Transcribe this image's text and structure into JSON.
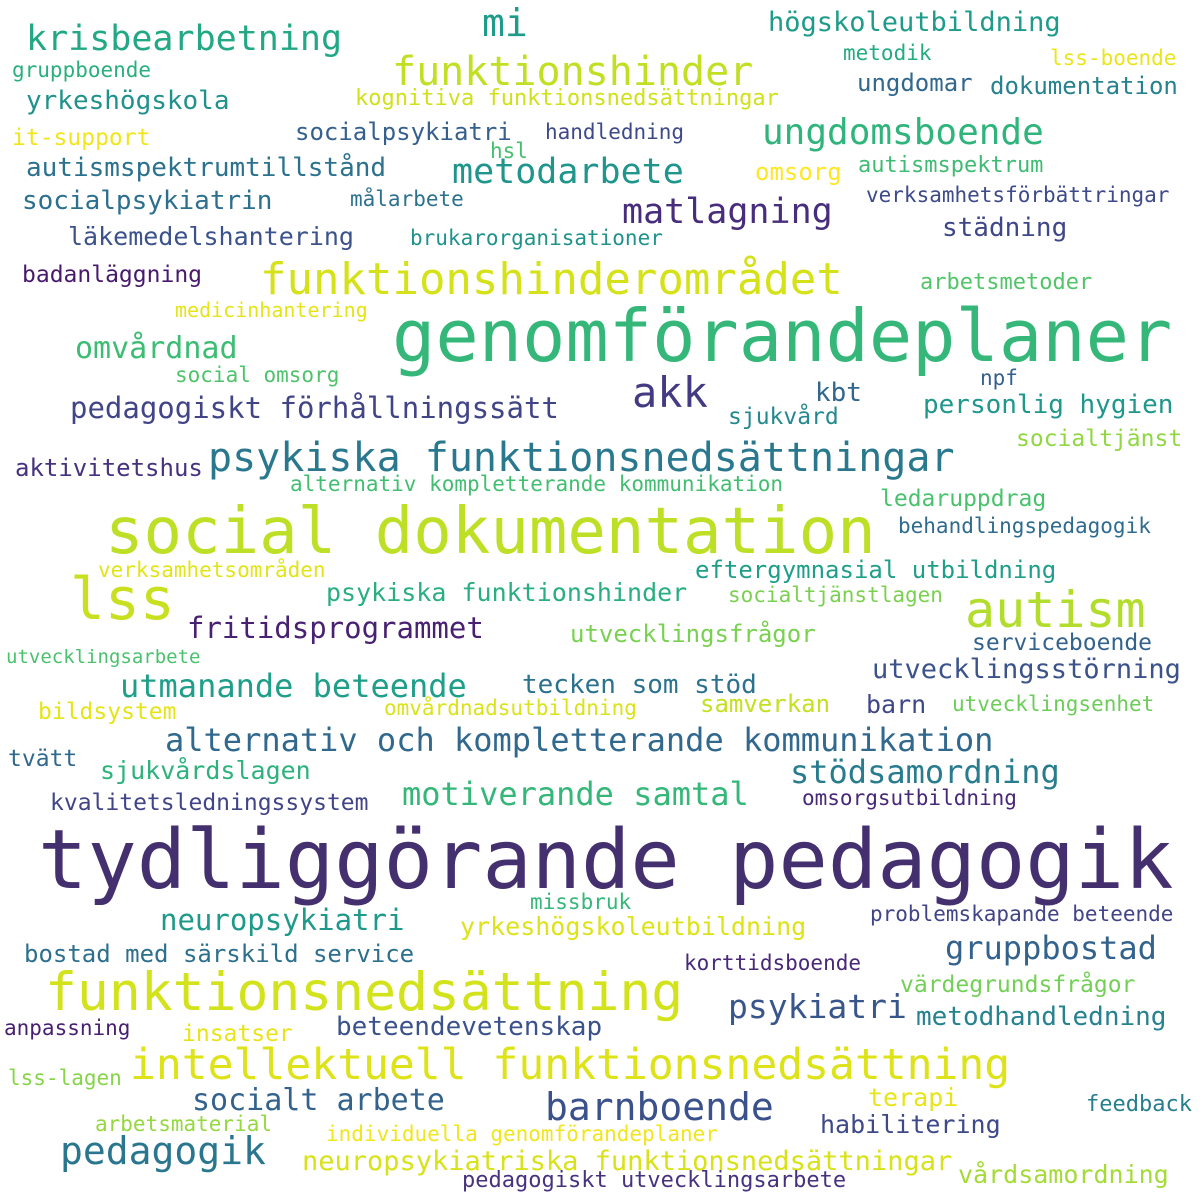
{
  "words": [
    {
      "text": "tydliggörande pedagogik",
      "color": "#45306f"
    },
    {
      "text": "genomförandeplaner",
      "color": "#35b779"
    },
    {
      "text": "social dokumentation",
      "color": "#bddf26"
    },
    {
      "text": "funktionsnedsättning",
      "color": "#d2e21b"
    },
    {
      "text": "intellektuell funktionsnedsättning",
      "color": "#dde318"
    },
    {
      "text": "autism",
      "color": "#b2dd2d"
    },
    {
      "text": "lss",
      "color": "#c8e020"
    },
    {
      "text": "funktionshinderområdet",
      "color": "#d5e21a"
    },
    {
      "text": "psykiska funktionsnedsättningar",
      "color": "#2a788e"
    },
    {
      "text": "akk",
      "color": "#443a83"
    },
    {
      "text": "funktionshinder",
      "color": "#c2df23"
    },
    {
      "text": "krisbearbetning",
      "color": "#22a884"
    },
    {
      "text": "ungdomsboende",
      "color": "#2fb47c"
    },
    {
      "text": "metodarbete",
      "color": "#1f958b"
    },
    {
      "text": "matlagning",
      "color": "#472d7b"
    },
    {
      "text": "mi",
      "color": "#1e9c89"
    },
    {
      "text": "barnboende",
      "color": "#3b518b"
    },
    {
      "text": "pedagogik",
      "color": "#2a768e"
    },
    {
      "text": "alternativ och kompletterande kommunikation",
      "color": "#31688e"
    },
    {
      "text": "utmanande beteende",
      "color": "#1f9e89"
    },
    {
      "text": "motiverande samtal",
      "color": "#35b779"
    },
    {
      "text": "stödsamordning",
      "color": "#287c8e"
    },
    {
      "text": "gruppbostad",
      "color": "#33638d"
    },
    {
      "text": "fritidsprogrammet",
      "color": "#482173"
    },
    {
      "text": "pedagogiskt förhållningssätt",
      "color": "#414487"
    },
    {
      "text": "omvårdnad",
      "color": "#3dbc74"
    },
    {
      "text": "neuropsykiatri",
      "color": "#1f998a"
    },
    {
      "text": "psykiatri",
      "color": "#39568c"
    },
    {
      "text": "socialt arbete",
      "color": "#33638d"
    },
    {
      "text": "neuropsykiatriska funktionsnedsättningar",
      "color": "#d8e219"
    },
    {
      "text": "högskoleutbildning",
      "color": "#1e9b8a"
    },
    {
      "text": "yrkeshögskola",
      "color": "#21918c"
    },
    {
      "text": "autismspektrumtillstånd",
      "color": "#2c728e"
    },
    {
      "text": "socialpsykiatrin",
      "color": "#2d708e"
    },
    {
      "text": "socialpsykiatri",
      "color": "#355f8d"
    },
    {
      "text": "läkemedelshantering",
      "color": "#3b528b"
    },
    {
      "text": "kognitiva funktionsnedsättningar",
      "color": "#d0e11c"
    },
    {
      "text": "it-support",
      "color": "#f1e51d"
    },
    {
      "text": "gruppboende",
      "color": "#2ab07f"
    },
    {
      "text": "handledning",
      "color": "#3e4989"
    },
    {
      "text": "metodik",
      "color": "#25ab82"
    },
    {
      "text": "lss-boende",
      "color": "#eae51a"
    },
    {
      "text": "ungdomar",
      "color": "#31688e"
    },
    {
      "text": "dokumentation",
      "color": "#26828e"
    },
    {
      "text": "hsl",
      "color": "#44bf70"
    },
    {
      "text": "omsorg",
      "color": "#fde725"
    },
    {
      "text": "autismspektrum",
      "color": "#3fbc73"
    },
    {
      "text": "verksamhetsförbättringar",
      "color": "#3e4a89"
    },
    {
      "text": "målarbete",
      "color": "#2c718e"
    },
    {
      "text": "städning",
      "color": "#3f4788"
    },
    {
      "text": "brukarorganisationer",
      "color": "#20928c"
    },
    {
      "text": "badanläggning",
      "color": "#481a6c"
    },
    {
      "text": "arbetsmetoder",
      "color": "#52c569"
    },
    {
      "text": "medicinhantering",
      "color": "#e5e419"
    },
    {
      "text": "social omsorg",
      "color": "#4ec36b"
    },
    {
      "text": "kbt",
      "color": "#31678e"
    },
    {
      "text": "npf",
      "color": "#34608d"
    },
    {
      "text": "sjukvård",
      "color": "#23898e"
    },
    {
      "text": "personlig hygien",
      "color": "#1f978b"
    },
    {
      "text": "socialtjänst",
      "color": "#90d743"
    },
    {
      "text": "aktivitetshus",
      "color": "#46327e"
    },
    {
      "text": "alternativ kompletterande kommunikation",
      "color": "#42be71"
    },
    {
      "text": "ledaruppdrag",
      "color": "#4ac16d"
    },
    {
      "text": "behandlingspedagogik",
      "color": "#2f6b8e"
    },
    {
      "text": "verksamhetsområden",
      "color": "#e2e418"
    },
    {
      "text": "eftergymnasial utbildning",
      "color": "#1f9e89"
    },
    {
      "text": "psykiska funktionshinder",
      "color": "#28ae80"
    },
    {
      "text": "socialtjänstlagen",
      "color": "#7ad151"
    },
    {
      "text": "utvecklingsfrågor",
      "color": "#7ad151"
    },
    {
      "text": "serviceboende",
      "color": "#33638d"
    },
    {
      "text": "utvecklingsarbete",
      "color": "#4ac16d"
    },
    {
      "text": "utvecklingsstörning",
      "color": "#3b528b"
    },
    {
      "text": "tecken som stöd",
      "color": "#2c728e"
    },
    {
      "text": "bildsystem",
      "color": "#e5e419"
    },
    {
      "text": "omvårdnadsutbildning",
      "color": "#dae319"
    },
    {
      "text": "samverkan",
      "color": "#c5e021"
    },
    {
      "text": "barn",
      "color": "#3f4788"
    },
    {
      "text": "utvecklingsenhet",
      "color": "#6ccd5a"
    },
    {
      "text": "tvätt",
      "color": "#31688e"
    },
    {
      "text": "sjukvårdslagen",
      "color": "#2db27d"
    },
    {
      "text": "kvalitetsledningssystem",
      "color": "#414487"
    },
    {
      "text": "omsorgsutbildning",
      "color": "#482878"
    },
    {
      "text": "missbruk",
      "color": "#35b779"
    },
    {
      "text": "yrkeshögskoleutbildning",
      "color": "#dde318"
    },
    {
      "text": "problemskapande beteende",
      "color": "#414487"
    },
    {
      "text": "bostad med särskild service",
      "color": "#2d708e"
    },
    {
      "text": "korttidsboende",
      "color": "#482878"
    },
    {
      "text": "värdegrundsfrågor",
      "color": "#73d056"
    },
    {
      "text": "anpassning",
      "color": "#481f70"
    },
    {
      "text": "insatser",
      "color": "#e8e419"
    },
    {
      "text": "beteendevetenskap",
      "color": "#3b528b"
    },
    {
      "text": "metodhandledning",
      "color": "#26828e"
    },
    {
      "text": "lss-lagen",
      "color": "#86d549"
    },
    {
      "text": "terapi",
      "color": "#e7e419"
    },
    {
      "text": "feedback",
      "color": "#277f8e"
    },
    {
      "text": "arbetsmaterial",
      "color": "#95d840"
    },
    {
      "text": "individuella genomförandeplaner",
      "color": "#f1e51d"
    },
    {
      "text": "habilitering",
      "color": "#3e4989"
    },
    {
      "text": "vårdsamordning",
      "color": "#a5db36"
    },
    {
      "text": "pedagogiskt utvecklingsarbete",
      "color": "#46327e"
    }
  ]
}
